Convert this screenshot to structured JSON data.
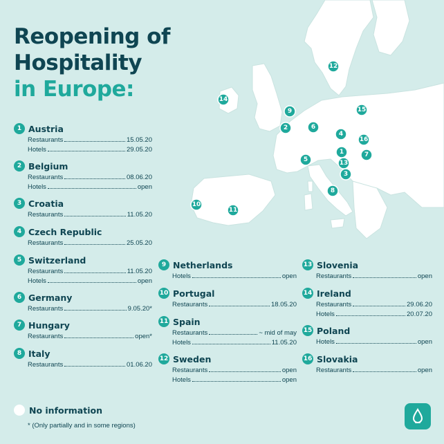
{
  "title": {
    "line1": "Reopening of",
    "line2": "Hospitality",
    "line3": "in Europe:"
  },
  "colors": {
    "navy": "#0f4552",
    "teal": "#1fa99c",
    "background": "#d4ecea",
    "land": "#ffffff"
  },
  "countries": [
    {
      "num": "1",
      "name": "Austria",
      "rows": [
        {
          "label": "Restaurants",
          "value": "15.05.20"
        },
        {
          "label": "Hotels",
          "value": "29.05.20"
        }
      ]
    },
    {
      "num": "2",
      "name": "Belgium",
      "rows": [
        {
          "label": "Restaurants",
          "value": "08.06.20"
        },
        {
          "label": "Hotels",
          "value": "open"
        }
      ]
    },
    {
      "num": "3",
      "name": "Croatia",
      "rows": [
        {
          "label": "Restaurants",
          "value": "11.05.20"
        }
      ]
    },
    {
      "num": "4",
      "name": "Czech Republic",
      "rows": [
        {
          "label": "Restaurants",
          "value": "25.05.20"
        }
      ]
    },
    {
      "num": "5",
      "name": "Switzerland",
      "rows": [
        {
          "label": "Restaurants",
          "value": "11.05.20"
        },
        {
          "label": "Hotels",
          "value": "open"
        }
      ]
    },
    {
      "num": "6",
      "name": "Germany",
      "rows": [
        {
          "label": "Restaurants",
          "value": "9.05.20*"
        }
      ]
    },
    {
      "num": "7",
      "name": "Hungary",
      "rows": [
        {
          "label": "Restaurants",
          "value": "open*"
        }
      ]
    },
    {
      "num": "8",
      "name": "Italy",
      "rows": [
        {
          "label": "Restaurants",
          "value": "01.06.20"
        }
      ]
    },
    {
      "num": "9",
      "name": "Netherlands",
      "rows": [
        {
          "label": "Hotels",
          "value": "open"
        }
      ]
    },
    {
      "num": "10",
      "name": "Portugal",
      "rows": [
        {
          "label": "Restaurants",
          "value": "18.05.20"
        }
      ]
    },
    {
      "num": "11",
      "name": "Spain",
      "rows": [
        {
          "label": "Restaurants",
          "value": "~ mid of may"
        },
        {
          "label": "Hotels",
          "value": "11.05.20"
        }
      ]
    },
    {
      "num": "12",
      "name": "Sweden",
      "rows": [
        {
          "label": "Restaurants",
          "value": "open"
        },
        {
          "label": "Hotels",
          "value": "open"
        }
      ]
    },
    {
      "num": "13",
      "name": "Slovenia",
      "rows": [
        {
          "label": "Restaurants",
          "value": "open"
        }
      ]
    },
    {
      "num": "14",
      "name": "Ireland",
      "rows": [
        {
          "label": "Restaurants",
          "value": "29.06.20"
        },
        {
          "label": "Hotels",
          "value": "20.07.20"
        }
      ]
    },
    {
      "num": "15",
      "name": "Poland",
      "rows": [
        {
          "label": "Hotels",
          "value": "open"
        }
      ]
    },
    {
      "num": "16",
      "name": "Slovakia",
      "rows": [
        {
          "label": "Restaurants",
          "value": "open"
        }
      ]
    }
  ],
  "legend": {
    "no_info": "No information",
    "footnote": "* (Only partially and in some regions)"
  },
  "map": {
    "marker_numbers": [
      "1",
      "2",
      "3",
      "4",
      "5",
      "6",
      "7",
      "8",
      "9",
      "10",
      "11",
      "12",
      "13",
      "14",
      "15",
      "16"
    ]
  },
  "logo_icon": "droplet-icon"
}
